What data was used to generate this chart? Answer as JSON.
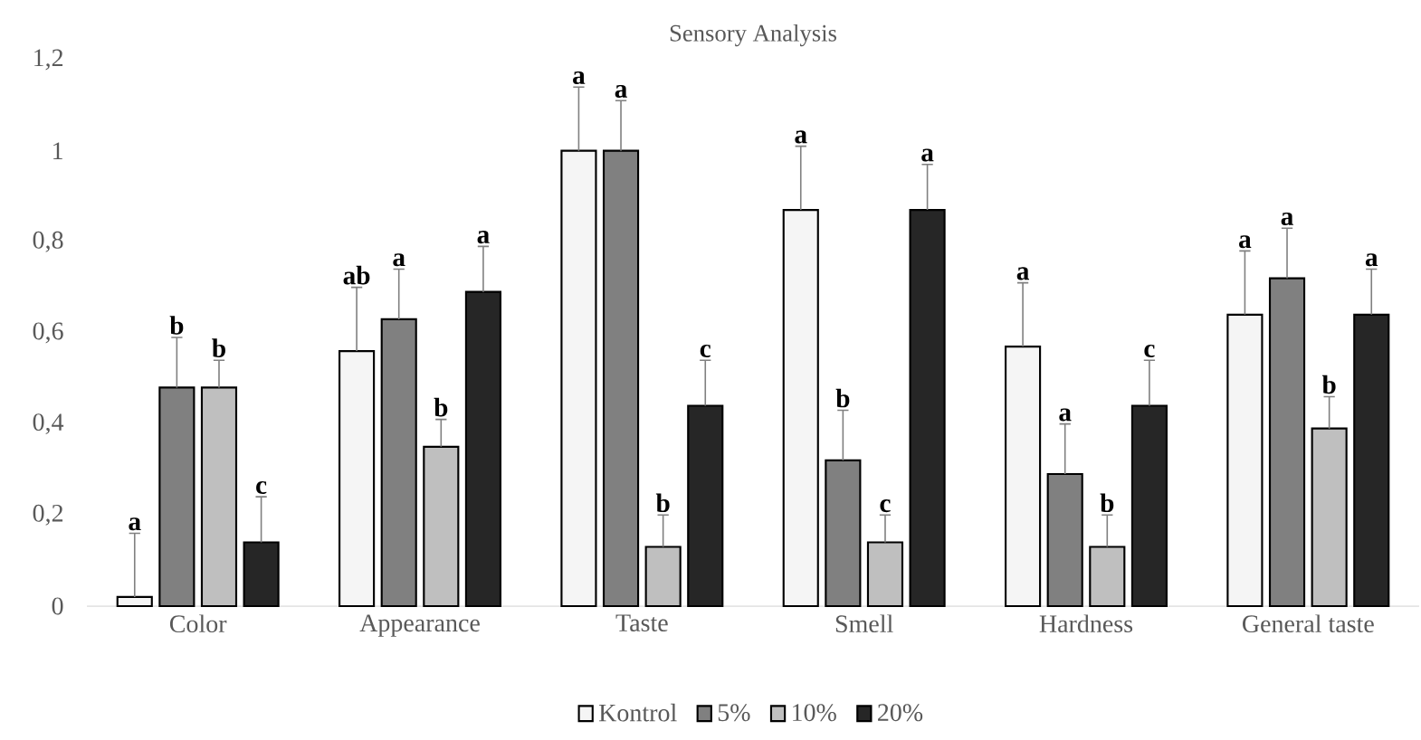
{
  "chart_data": {
    "type": "bar",
    "title": "Sensory Analysis",
    "categories": [
      "Color",
      "Appearance",
      "Taste",
      "Smell",
      "Hardness",
      "General taste"
    ],
    "series": [
      {
        "name": "Kontrol",
        "color": "#000000",
        "values": [
          0.02,
          0.56,
          1.0,
          0.87,
          0.57,
          0.64
        ],
        "errors": [
          0.14,
          0.14,
          0.14,
          0.14,
          0.14,
          0.14
        ],
        "value_labels": [
          "a",
          "ab",
          "a",
          "a",
          "a",
          "a"
        ]
      },
      {
        "name": "5%",
        "color": "#000000",
        "values": [
          0.48,
          0.63,
          1.0,
          0.32,
          0.29,
          0.72
        ],
        "errors": [
          0.11,
          0.11,
          0.11,
          0.11,
          0.11,
          0.11
        ],
        "value_labels": [
          "b",
          "a",
          "a",
          "b",
          "a",
          "a"
        ]
      },
      {
        "name": "10%",
        "color": "#000000",
        "values": [
          0.48,
          0.35,
          0.13,
          0.14,
          0.13,
          0.39
        ],
        "errors": [
          0.06,
          0.06,
          0.07,
          0.06,
          0.07,
          0.07
        ],
        "value_labels": [
          "b",
          "b",
          "b",
          "c",
          "b",
          "b"
        ]
      },
      {
        "name": "20%",
        "color": "#000000",
        "values": [
          0.14,
          0.69,
          0.44,
          0.87,
          0.44,
          0.64
        ],
        "errors": [
          0.1,
          0.1,
          0.1,
          0.1,
          0.1,
          0.1
        ],
        "value_labels": [
          "c",
          "a",
          "c",
          "a",
          "c",
          "a"
        ]
      }
    ],
    "ylim": [
      0,
      1.2
    ],
    "yticks": [
      0,
      {
        "value": 0.2,
        "label": "0,2"
      },
      {
        "value": 0.4,
        "label": "0,4"
      },
      {
        "value": 0.6,
        "label": "0,6"
      },
      {
        "value": 0.8,
        "label": "0,8"
      },
      1,
      {
        "value": 1.2,
        "label": "1,2"
      }
    ],
    "grid": false,
    "legend": "bottom"
  }
}
